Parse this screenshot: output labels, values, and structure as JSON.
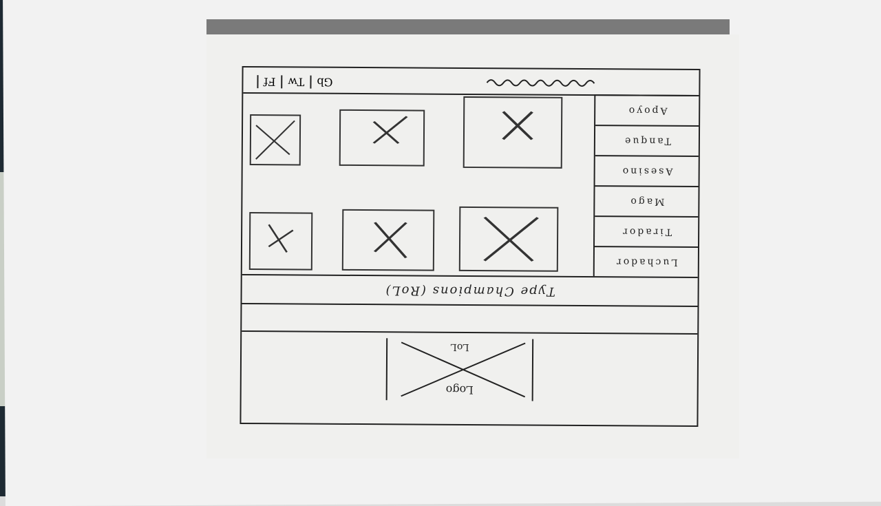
{
  "topbar": {
    "social": [
      {
        "label": "Ff",
        "icon": "social-icon"
      },
      {
        "label": "Tw",
        "icon": "social-icon"
      },
      {
        "label": "Gb",
        "icon": "social-icon"
      }
    ],
    "brand_icon": "scribble-brand-icon"
  },
  "sidebar": {
    "items": [
      {
        "label": "Apoyo"
      },
      {
        "label": "Tanque"
      },
      {
        "label": "Asesino"
      },
      {
        "label": "Mago"
      },
      {
        "label": "Tirador"
      },
      {
        "label": "Luchador"
      }
    ]
  },
  "grid": {
    "placeholders": [
      {
        "icon": "image-placeholder-icon"
      },
      {
        "icon": "image-placeholder-icon"
      },
      {
        "icon": "image-placeholder-icon"
      },
      {
        "icon": "image-placeholder-icon"
      },
      {
        "icon": "image-placeholder-icon"
      },
      {
        "icon": "image-placeholder-icon"
      }
    ]
  },
  "caption": {
    "text": "Type Champions (RoL)"
  },
  "footer": {
    "logo_top": "LoL",
    "logo_bottom": "Logo",
    "logo_icon": "logo-placeholder-icon"
  },
  "colors": {
    "ink": "#222222",
    "paper": "#f0f0ee",
    "desk": "#f2f2f2"
  }
}
